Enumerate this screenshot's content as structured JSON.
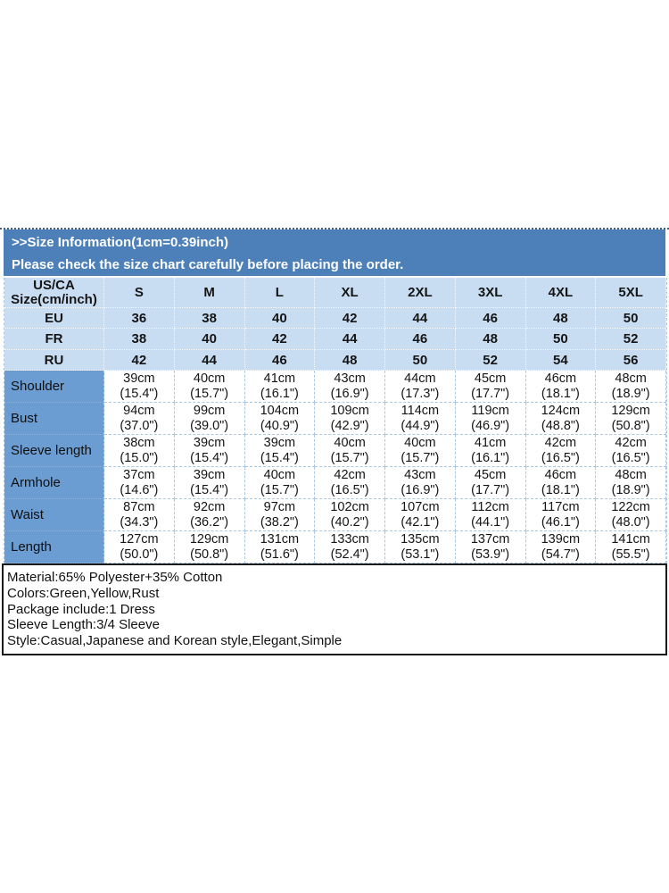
{
  "header": {
    "title": ">>Size Information(1cm=0.39inch)",
    "subtitle": "Please check the size chart carefully before placing the order."
  },
  "size_table": {
    "corner_label_line1": "US/CA",
    "corner_label_line2": "Size(cm/inch)",
    "sizes": [
      "S",
      "M",
      "L",
      "XL",
      "2XL",
      "3XL",
      "4XL",
      "5XL"
    ],
    "region_rows": [
      {
        "label": "EU",
        "values": [
          "36",
          "38",
          "40",
          "42",
          "44",
          "46",
          "48",
          "50"
        ]
      },
      {
        "label": "FR",
        "values": [
          "38",
          "40",
          "42",
          "44",
          "46",
          "48",
          "50",
          "52"
        ]
      },
      {
        "label": "RU",
        "values": [
          "42",
          "44",
          "46",
          "48",
          "50",
          "52",
          "54",
          "56"
        ]
      }
    ],
    "measurement_rows": [
      {
        "label": "Shoulder",
        "cm": [
          "39cm",
          "40cm",
          "41cm",
          "43cm",
          "44cm",
          "45cm",
          "46cm",
          "48cm"
        ],
        "inch": [
          "(15.4\")",
          "(15.7\")",
          "(16.1\")",
          "(16.9\")",
          "(17.3\")",
          "(17.7\")",
          "(18.1\")",
          "(18.9\")"
        ]
      },
      {
        "label": "Bust",
        "cm": [
          "94cm",
          "99cm",
          "104cm",
          "109cm",
          "114cm",
          "119cm",
          "124cm",
          "129cm"
        ],
        "inch": [
          "(37.0\")",
          "(39.0\")",
          "(40.9\")",
          "(42.9\")",
          "(44.9\")",
          "(46.9\")",
          "(48.8\")",
          "(50.8\")"
        ]
      },
      {
        "label": "Sleeve length",
        "cm": [
          "38cm",
          "39cm",
          "39cm",
          "40cm",
          "40cm",
          "41cm",
          "42cm",
          "42cm"
        ],
        "inch": [
          "(15.0\")",
          "(15.4\")",
          "(15.4\")",
          "(15.7\")",
          "(15.7\")",
          "(16.1\")",
          "(16.5\")",
          "(16.5\")"
        ]
      },
      {
        "label": "Armhole",
        "cm": [
          "37cm",
          "39cm",
          "40cm",
          "42cm",
          "43cm",
          "45cm",
          "46cm",
          "48cm"
        ],
        "inch": [
          "(14.6\")",
          "(15.4\")",
          "(15.7\")",
          "(16.5\")",
          "(16.9\")",
          "(17.7\")",
          "(18.1\")",
          "(18.9\")"
        ]
      },
      {
        "label": "Waist",
        "cm": [
          "87cm",
          "92cm",
          "97cm",
          "102cm",
          "107cm",
          "112cm",
          "117cm",
          "122cm"
        ],
        "inch": [
          "(34.3\")",
          "(36.2\")",
          "(38.2\")",
          "(40.2\")",
          "(42.1\")",
          "(44.1\")",
          "(46.1\")",
          "(48.0\")"
        ]
      },
      {
        "label": "Length",
        "cm": [
          "127cm",
          "129cm",
          "131cm",
          "133cm",
          "135cm",
          "137cm",
          "139cm",
          "141cm"
        ],
        "inch": [
          "(50.0\")",
          "(50.8\")",
          "(51.6\")",
          "(52.4\")",
          "(53.1\")",
          "(53.9\")",
          "(54.7\")",
          "(55.5\")"
        ]
      }
    ]
  },
  "product_info": {
    "lines": [
      "Material:65% Polyester+35% Cotton",
      "Colors:Green,Yellow,Rust",
      "Package include:1 Dress",
      "Sleeve Length:3/4 Sleeve",
      "Style:Casual,Japanese and Korean style,Elegant,Simple"
    ]
  },
  "colors": {
    "header_bar": "#4d80b8",
    "light_blue_cell": "#c9ddf2",
    "measure_label_cell": "#6b9dd2",
    "info_border": "#1b1b1b",
    "table_border": "#aac7e4"
  }
}
